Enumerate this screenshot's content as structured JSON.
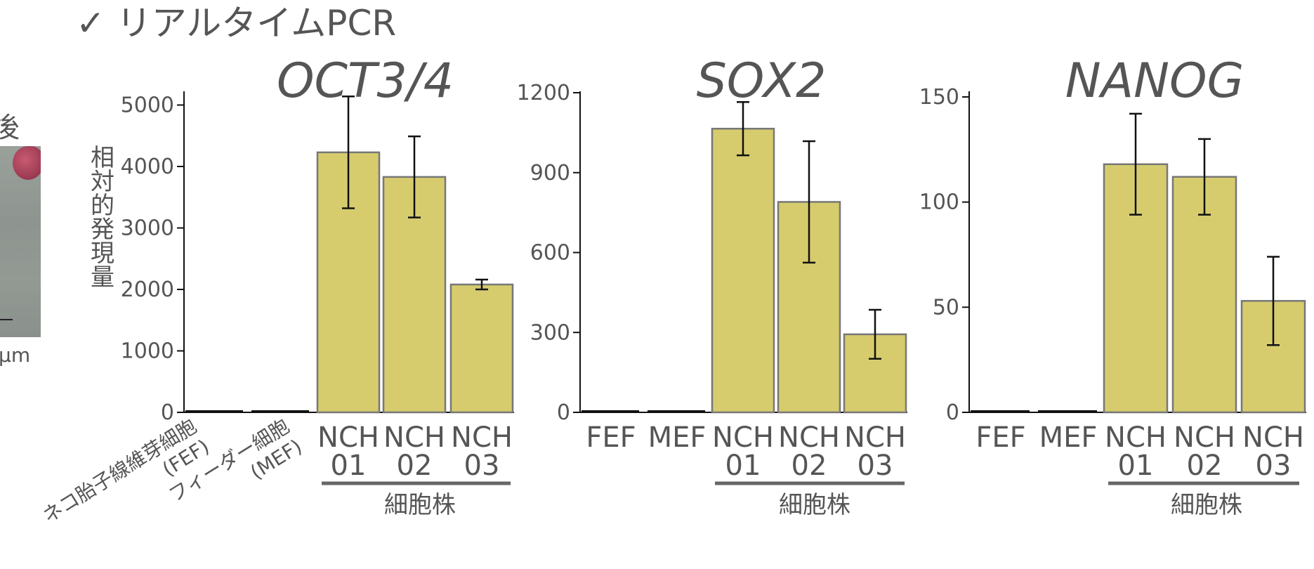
{
  "page": {
    "title": "✓ リアルタイムPCR",
    "edge_char": "後",
    "edge_unit": "μm"
  },
  "colors": {
    "bar_fill": "#d6cc6e",
    "bar_stroke": "#777777",
    "axis": "#111111",
    "text": "#555555",
    "group_line": "#666666"
  },
  "chart_data": [
    {
      "type": "bar",
      "title": "OCT3/4",
      "ylabel": "相対的発現量",
      "ylim": [
        0,
        5200
      ],
      "yticks": [
        0,
        1000,
        2000,
        3000,
        4000,
        5000
      ],
      "categories": [
        {
          "lines": [
            "ネコ胎子線維芽細胞",
            "(FEF)"
          ]
        },
        {
          "lines": [
            "フィーダー細胞",
            "(MEF)"
          ]
        },
        {
          "lines": [
            "NCH",
            "01"
          ]
        },
        {
          "lines": [
            "NCH",
            "02"
          ]
        },
        {
          "lines": [
            "NCH",
            "03"
          ]
        }
      ],
      "values": [
        10,
        15,
        4230,
        3830,
        2080
      ],
      "errors": [
        0,
        0,
        910,
        660,
        80
      ],
      "group_label": "細胞株"
    },
    {
      "type": "bar",
      "title": "SOX2",
      "ylim": [
        0,
        1200
      ],
      "yticks": [
        0,
        300,
        600,
        900,
        1200
      ],
      "categories": [
        {
          "lines": [
            "FEF"
          ]
        },
        {
          "lines": [
            "MEF"
          ]
        },
        {
          "lines": [
            "NCH",
            "01"
          ]
        },
        {
          "lines": [
            "NCH",
            "02"
          ]
        },
        {
          "lines": [
            "NCH",
            "03"
          ]
        }
      ],
      "values": [
        1,
        2,
        1065,
        790,
        293
      ],
      "errors": [
        0,
        0,
        100,
        228,
        92
      ],
      "group_label": "細胞株"
    },
    {
      "type": "bar",
      "title": "NANOG",
      "ylim": [
        0,
        152
      ],
      "yticks": [
        0,
        50,
        100,
        150
      ],
      "categories": [
        {
          "lines": [
            "FEF"
          ]
        },
        {
          "lines": [
            "MEF"
          ]
        },
        {
          "lines": [
            "NCH",
            "01"
          ]
        },
        {
          "lines": [
            "NCH",
            "02"
          ]
        },
        {
          "lines": [
            "NCH",
            "03"
          ]
        }
      ],
      "values": [
        1,
        0.3,
        118,
        112,
        53
      ],
      "errors": [
        0,
        0,
        24,
        18,
        21
      ],
      "group_label": "細胞株"
    }
  ]
}
